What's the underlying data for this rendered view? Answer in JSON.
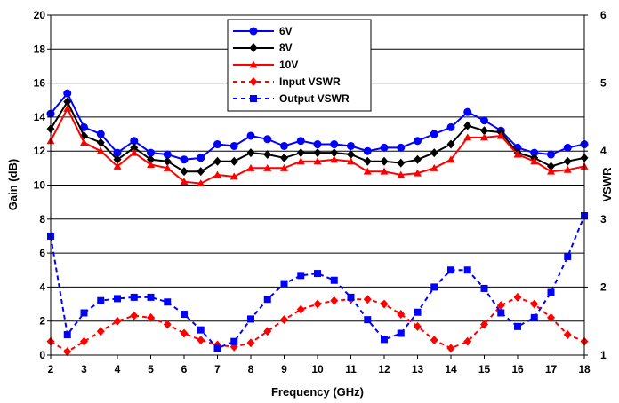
{
  "chart_data": {
    "type": "line",
    "xlabel": "Frequency (GHz)",
    "ylabel": "Gain (dB)",
    "y2label": "VSWR",
    "xlim": [
      2,
      18
    ],
    "ylim": [
      0,
      20
    ],
    "y2lim": [
      1,
      6
    ],
    "xticks": [
      2,
      3,
      4,
      5,
      6,
      7,
      8,
      9,
      10,
      11,
      12,
      13,
      14,
      15,
      16,
      17,
      18
    ],
    "yticks": [
      0,
      2,
      4,
      6,
      8,
      10,
      12,
      14,
      16,
      18,
      20
    ],
    "y2ticks": [
      1,
      2,
      3,
      4,
      5,
      6
    ],
    "grid": "horizontal",
    "legend_position": "top-center",
    "x": [
      2,
      2.5,
      3,
      3.5,
      4,
      4.5,
      5,
      5.5,
      6,
      6.5,
      7,
      7.5,
      8,
      8.5,
      9,
      9.5,
      10,
      10.5,
      11,
      11.5,
      12,
      12.5,
      13,
      13.5,
      14,
      14.5,
      15,
      15.5,
      16,
      16.5,
      17,
      17.5,
      18
    ],
    "series": [
      {
        "name": "6V",
        "axis": "left",
        "color": "#0000ff",
        "dash": "solid",
        "marker": "circle",
        "values": [
          14.2,
          15.4,
          13.4,
          13.0,
          11.9,
          12.6,
          11.9,
          11.8,
          11.5,
          11.6,
          12.4,
          12.3,
          12.9,
          12.7,
          12.3,
          12.6,
          12.4,
          12.4,
          12.3,
          12.0,
          12.2,
          12.2,
          12.6,
          13.0,
          13.4,
          14.3,
          13.8,
          13.2,
          12.2,
          11.9,
          11.8,
          12.2,
          12.4
        ]
      },
      {
        "name": "8V",
        "axis": "left",
        "color": "#000000",
        "dash": "solid",
        "marker": "diamond",
        "values": [
          13.3,
          14.9,
          12.9,
          12.5,
          11.5,
          12.2,
          11.5,
          11.4,
          10.8,
          10.8,
          11.4,
          11.4,
          11.9,
          11.8,
          11.6,
          11.9,
          11.9,
          11.9,
          11.8,
          11.4,
          11.4,
          11.3,
          11.5,
          11.9,
          12.4,
          13.5,
          13.2,
          13.1,
          11.9,
          11.6,
          11.1,
          11.4,
          11.6
        ]
      },
      {
        "name": "10V",
        "axis": "left",
        "color": "#ff0000",
        "dash": "solid",
        "marker": "triangle",
        "values": [
          12.6,
          14.5,
          12.5,
          12.0,
          11.1,
          11.9,
          11.2,
          11.0,
          10.2,
          10.1,
          10.6,
          10.5,
          11.0,
          11.0,
          11.0,
          11.4,
          11.4,
          11.5,
          11.4,
          10.8,
          10.8,
          10.6,
          10.7,
          11.0,
          11.5,
          12.8,
          12.8,
          12.9,
          11.8,
          11.4,
          10.8,
          10.9,
          11.1
        ]
      },
      {
        "name": "Input VSWR",
        "axis": "right",
        "color": "#ff0000",
        "dash": "dashed",
        "marker": "diamond",
        "values": [
          1.2,
          1.05,
          1.2,
          1.35,
          1.5,
          1.58,
          1.55,
          1.45,
          1.32,
          1.22,
          1.15,
          1.12,
          1.18,
          1.35,
          1.52,
          1.67,
          1.75,
          1.8,
          1.82,
          1.82,
          1.75,
          1.6,
          1.42,
          1.22,
          1.1,
          1.2,
          1.45,
          1.73,
          1.85,
          1.75,
          1.55,
          1.3,
          1.2
        ]
      },
      {
        "name": "Output VSWR",
        "axis": "right",
        "color": "#0000ff",
        "dash": "dashed",
        "marker": "square",
        "values": [
          2.75,
          1.3,
          1.62,
          1.8,
          1.83,
          1.85,
          1.85,
          1.78,
          1.6,
          1.37,
          1.1,
          1.2,
          1.53,
          1.82,
          2.05,
          2.17,
          2.2,
          2.1,
          1.85,
          1.52,
          1.23,
          1.32,
          1.63,
          2.0,
          2.25,
          2.25,
          1.98,
          1.62,
          1.42,
          1.55,
          1.92,
          2.45,
          3.05
        ]
      }
    ]
  }
}
